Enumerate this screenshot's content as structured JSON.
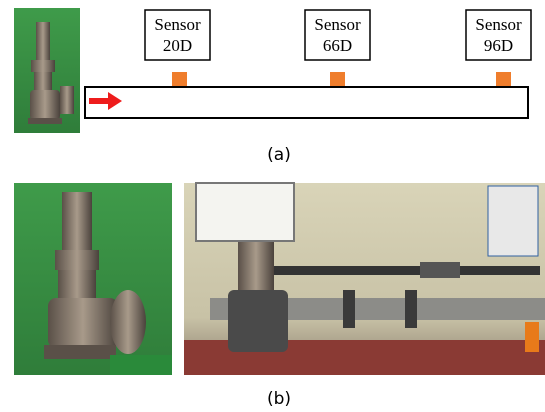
{
  "sensors": [
    {
      "label": "Sensor",
      "position": "20D"
    },
    {
      "label": "Sensor",
      "position": "66D"
    },
    {
      "label": "Sensor",
      "position": "96D"
    }
  ],
  "captions": {
    "a": "(a)",
    "b": "(b)"
  }
}
